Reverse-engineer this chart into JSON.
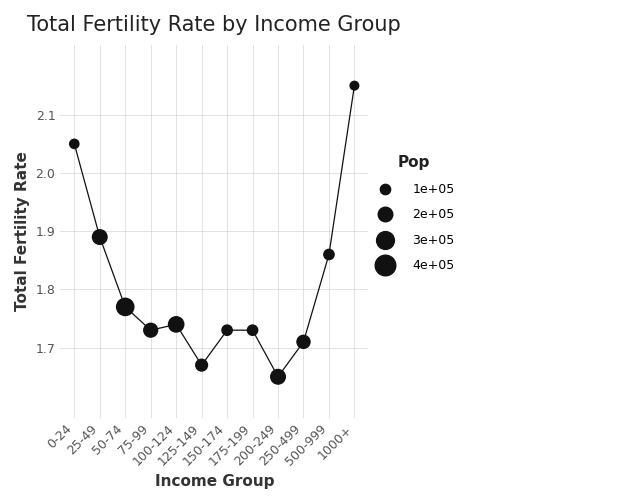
{
  "title": "Total Fertility Rate by Income Group",
  "xlabel": "Income Group",
  "ylabel": "Total Fertility Rate",
  "categories": [
    "0-24",
    "25-49",
    "50-74",
    "75-99",
    "100-124",
    "125-149",
    "150-174",
    "175-199",
    "200-249",
    "250-499",
    "500-999",
    "1000+"
  ],
  "tfr": [
    2.05,
    1.89,
    1.77,
    1.73,
    1.74,
    1.67,
    1.73,
    1.73,
    1.65,
    1.71,
    1.86,
    2.15
  ],
  "pop": [
    80000,
    200000,
    280000,
    180000,
    220000,
    130000,
    100000,
    100000,
    200000,
    160000,
    100000,
    70000
  ],
  "dot_color": "#111111",
  "line_color": "#111111",
  "background_color": "#ffffff",
  "plot_bg_color": "#ffffff",
  "grid_color": "#cccccc",
  "legend_sizes": [
    100000,
    200000,
    300000,
    400000
  ],
  "legend_labels": [
    "1e+05",
    "2e+05",
    "3e+05",
    "4e+05"
  ],
  "legend_title": "Pop",
  "title_fontsize": 15,
  "axis_label_fontsize": 11,
  "tick_fontsize": 9,
  "ylim_min": 1.58,
  "ylim_max": 2.22,
  "yticks": [
    1.7,
    1.8,
    1.9,
    2.0,
    2.1
  ]
}
